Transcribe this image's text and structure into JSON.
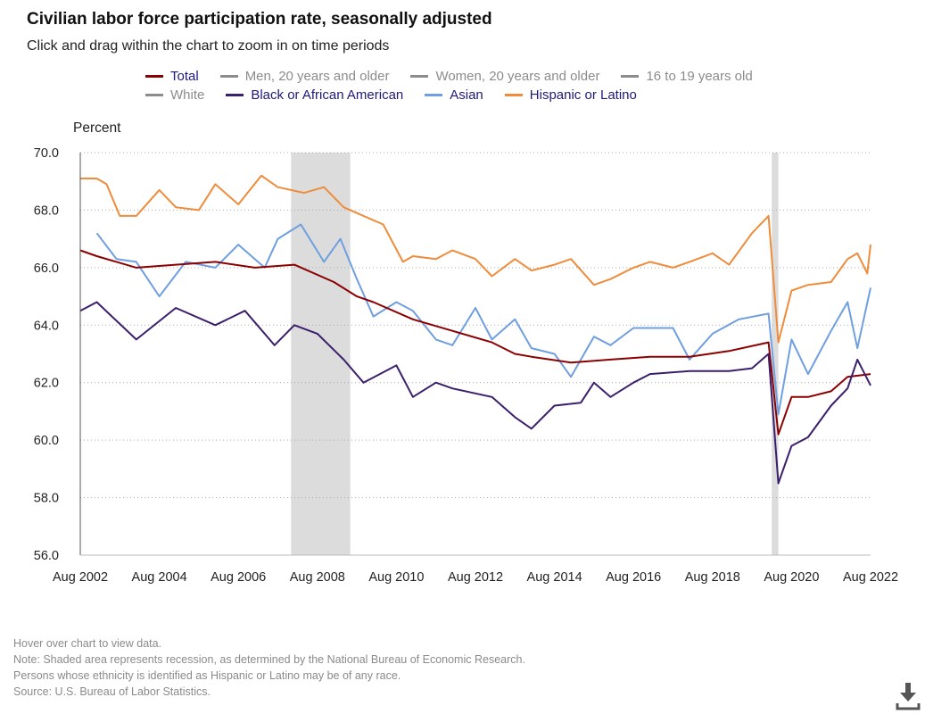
{
  "title": "Civilian labor force participation rate, seasonally adjusted",
  "subtitle": "Click and drag within the chart to zoom in on time periods",
  "legend": [
    {
      "label": "Total",
      "color": "#8b0000",
      "text_color": "#1f1a7a",
      "row": 0
    },
    {
      "label": "Men, 20 years and older",
      "color": "#8c8c8c",
      "text_color": "#8c8c8c",
      "row": 0
    },
    {
      "label": "Women, 20 years and older",
      "color": "#8c8c8c",
      "text_color": "#8c8c8c",
      "row": 0
    },
    {
      "label": "16 to 19 years old",
      "color": "#8c8c8c",
      "text_color": "#8c8c8c",
      "row": 0
    },
    {
      "label": "White",
      "color": "#8c8c8c",
      "text_color": "#8c8c8c",
      "row": 1
    },
    {
      "label": "Black or African American",
      "color": "#3b1f6b",
      "text_color": "#1f1a7a",
      "row": 1
    },
    {
      "label": "Asian",
      "color": "#6f9fe0",
      "text_color": "#1f1a7a",
      "row": 1
    },
    {
      "label": "Hispanic or Latino",
      "color": "#ef8c3c",
      "text_color": "#1f1a7a",
      "row": 1
    }
  ],
  "footnotes": [
    "Hover over chart to view data.",
    "Note: Shaded area represents recession, as determined by the National Bureau of Economic Research.",
    "Persons whose ethnicity is identified as Hispanic or Latino may be of any race.",
    "Source: U.S. Bureau of Labor Statistics."
  ],
  "download_icon": "download-icon",
  "chart_data": {
    "type": "line",
    "ylabel": "Percent",
    "xlim": [
      "2002-08",
      "2022-08"
    ],
    "ylim": [
      56,
      70
    ],
    "yticks": [
      "56.0",
      "58.0",
      "60.0",
      "62.0",
      "64.0",
      "66.0",
      "68.0",
      "70.0"
    ],
    "xticks": [
      "Aug 2002",
      "Aug 2004",
      "Aug 2006",
      "Aug 2008",
      "Aug 2010",
      "Aug 2012",
      "Aug 2014",
      "Aug 2016",
      "Aug 2018",
      "Aug 2020",
      "Aug 2022"
    ],
    "grid": "horizontal dotted",
    "recessions": [
      [
        "2007-12",
        "2009-06"
      ],
      [
        "2020-02",
        "2020-04"
      ]
    ],
    "series": [
      {
        "name": "Hispanic or Latino",
        "color": "#ef8c3c",
        "points": [
          [
            "2002-08",
            69.1
          ],
          [
            "2003-01",
            69.1
          ],
          [
            "2003-04",
            68.9
          ],
          [
            "2003-08",
            67.8
          ],
          [
            "2004-01",
            67.8
          ],
          [
            "2004-08",
            68.7
          ],
          [
            "2005-01",
            68.1
          ],
          [
            "2005-08",
            68.0
          ],
          [
            "2006-01",
            68.9
          ],
          [
            "2006-08",
            68.2
          ],
          [
            "2007-03",
            69.2
          ],
          [
            "2007-08",
            68.8
          ],
          [
            "2008-04",
            68.6
          ],
          [
            "2008-10",
            68.8
          ],
          [
            "2009-04",
            68.1
          ],
          [
            "2009-10",
            67.8
          ],
          [
            "2010-04",
            67.5
          ],
          [
            "2010-10",
            66.2
          ],
          [
            "2011-01",
            66.4
          ],
          [
            "2011-08",
            66.3
          ],
          [
            "2012-01",
            66.6
          ],
          [
            "2012-08",
            66.3
          ],
          [
            "2013-01",
            65.7
          ],
          [
            "2013-08",
            66.3
          ],
          [
            "2014-01",
            65.9
          ],
          [
            "2014-08",
            66.1
          ],
          [
            "2015-01",
            66.3
          ],
          [
            "2015-08",
            65.4
          ],
          [
            "2016-01",
            65.6
          ],
          [
            "2016-08",
            66.0
          ],
          [
            "2017-01",
            66.2
          ],
          [
            "2017-08",
            66.0
          ],
          [
            "2018-01",
            66.2
          ],
          [
            "2018-08",
            66.5
          ],
          [
            "2019-01",
            66.1
          ],
          [
            "2019-08",
            67.2
          ],
          [
            "2020-01",
            67.8
          ],
          [
            "2020-04",
            63.4
          ],
          [
            "2020-08",
            65.2
          ],
          [
            "2021-01",
            65.4
          ],
          [
            "2021-08",
            65.5
          ],
          [
            "2022-01",
            66.3
          ],
          [
            "2022-04",
            66.5
          ],
          [
            "2022-07",
            65.8
          ],
          [
            "2022-08",
            66.8
          ]
        ]
      },
      {
        "name": "Asian",
        "color": "#6f9fe0",
        "points": [
          [
            "2003-01",
            67.2
          ],
          [
            "2003-07",
            66.3
          ],
          [
            "2004-01",
            66.2
          ],
          [
            "2004-08",
            65.0
          ],
          [
            "2005-04",
            66.2
          ],
          [
            "2006-01",
            66.0
          ],
          [
            "2006-08",
            66.8
          ],
          [
            "2007-04",
            66.0
          ],
          [
            "2007-08",
            67.0
          ],
          [
            "2008-03",
            67.5
          ],
          [
            "2008-10",
            66.2
          ],
          [
            "2009-03",
            67.0
          ],
          [
            "2009-08",
            65.6
          ],
          [
            "2010-01",
            64.3
          ],
          [
            "2010-08",
            64.8
          ],
          [
            "2011-01",
            64.5
          ],
          [
            "2011-08",
            63.5
          ],
          [
            "2012-01",
            63.3
          ],
          [
            "2012-08",
            64.6
          ],
          [
            "2013-01",
            63.5
          ],
          [
            "2013-08",
            64.2
          ],
          [
            "2014-01",
            63.2
          ],
          [
            "2014-08",
            63.0
          ],
          [
            "2015-01",
            62.2
          ],
          [
            "2015-08",
            63.6
          ],
          [
            "2016-01",
            63.3
          ],
          [
            "2016-08",
            63.9
          ],
          [
            "2017-08",
            63.9
          ],
          [
            "2018-01",
            62.8
          ],
          [
            "2018-08",
            63.7
          ],
          [
            "2019-04",
            64.2
          ],
          [
            "2020-01",
            64.4
          ],
          [
            "2020-04",
            60.9
          ],
          [
            "2020-08",
            63.5
          ],
          [
            "2021-01",
            62.3
          ],
          [
            "2021-08",
            63.8
          ],
          [
            "2022-01",
            64.8
          ],
          [
            "2022-04",
            63.2
          ],
          [
            "2022-08",
            65.3
          ]
        ]
      },
      {
        "name": "Total",
        "color": "#8b0000",
        "points": [
          [
            "2002-08",
            66.6
          ],
          [
            "2003-01",
            66.4
          ],
          [
            "2004-01",
            66.0
          ],
          [
            "2005-01",
            66.1
          ],
          [
            "2006-01",
            66.2
          ],
          [
            "2007-01",
            66.0
          ],
          [
            "2008-01",
            66.1
          ],
          [
            "2009-01",
            65.5
          ],
          [
            "2009-08",
            65.0
          ],
          [
            "2010-01",
            64.8
          ],
          [
            "2011-01",
            64.2
          ],
          [
            "2012-01",
            63.8
          ],
          [
            "2013-01",
            63.4
          ],
          [
            "2013-08",
            63.0
          ],
          [
            "2014-01",
            62.9
          ],
          [
            "2015-01",
            62.7
          ],
          [
            "2016-01",
            62.8
          ],
          [
            "2017-01",
            62.9
          ],
          [
            "2018-01",
            62.9
          ],
          [
            "2019-01",
            63.1
          ],
          [
            "2020-01",
            63.4
          ],
          [
            "2020-04",
            60.2
          ],
          [
            "2020-08",
            61.5
          ],
          [
            "2021-01",
            61.5
          ],
          [
            "2021-08",
            61.7
          ],
          [
            "2022-01",
            62.2
          ],
          [
            "2022-08",
            62.3
          ]
        ]
      },
      {
        "name": "Black or African American",
        "color": "#3b1f6b",
        "points": [
          [
            "2002-08",
            64.5
          ],
          [
            "2003-01",
            64.8
          ],
          [
            "2004-01",
            63.5
          ],
          [
            "2005-01",
            64.6
          ],
          [
            "2006-01",
            64.0
          ],
          [
            "2006-10",
            64.5
          ],
          [
            "2007-07",
            63.3
          ],
          [
            "2008-01",
            64.0
          ],
          [
            "2008-08",
            63.7
          ],
          [
            "2009-04",
            62.8
          ],
          [
            "2009-10",
            62.0
          ],
          [
            "2010-08",
            62.6
          ],
          [
            "2011-01",
            61.5
          ],
          [
            "2011-08",
            62.0
          ],
          [
            "2012-01",
            61.8
          ],
          [
            "2013-01",
            61.5
          ],
          [
            "2013-08",
            60.8
          ],
          [
            "2014-01",
            60.4
          ],
          [
            "2014-08",
            61.2
          ],
          [
            "2015-04",
            61.3
          ],
          [
            "2015-08",
            62.0
          ],
          [
            "2016-01",
            61.5
          ],
          [
            "2016-08",
            62.0
          ],
          [
            "2017-01",
            62.3
          ],
          [
            "2018-01",
            62.4
          ],
          [
            "2019-01",
            62.4
          ],
          [
            "2019-08",
            62.5
          ],
          [
            "2020-01",
            63.0
          ],
          [
            "2020-04",
            58.5
          ],
          [
            "2020-08",
            59.8
          ],
          [
            "2021-01",
            60.1
          ],
          [
            "2021-08",
            61.2
          ],
          [
            "2022-01",
            61.8
          ],
          [
            "2022-04",
            62.8
          ],
          [
            "2022-08",
            61.9
          ]
        ]
      }
    ]
  }
}
